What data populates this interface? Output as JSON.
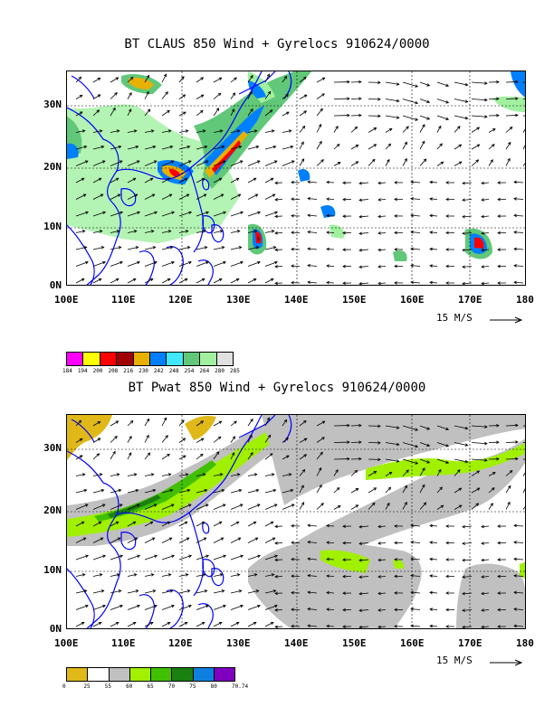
{
  "top": {
    "title": "BT CLAUS 850 Wind + Gyrelocs 910624/0000",
    "y_labels": [
      "30N",
      "20N",
      "10N",
      "0N"
    ],
    "x_labels": [
      "100E",
      "110E",
      "120E",
      "130E",
      "140E",
      "150E",
      "160E",
      "170E",
      "180"
    ],
    "scale_label": "15 M/S",
    "colorbar": {
      "colors": [
        "#ff00ff",
        "#ffff00",
        "#ff0000",
        "#a00000",
        "#e8b000",
        "#0080ff",
        "#40e8ff",
        "#60c878",
        "#a0f0a0",
        "#e0e0e0"
      ],
      "ticks": [
        "184",
        "194",
        "200",
        "208",
        "216",
        "230",
        "242",
        "248",
        "254",
        "264",
        "280",
        "285"
      ]
    }
  },
  "bottom": {
    "title": "BT Pwat 850 Wind + Gyrelocs 910624/0000",
    "y_labels": [
      "30N",
      "20N",
      "10N",
      "0N"
    ],
    "x_labels": [
      "100E",
      "110E",
      "120E",
      "130E",
      "140E",
      "150E",
      "160E",
      "170E",
      "180"
    ],
    "scale_label": "15 M/S",
    "colorbar": {
      "colors": [
        "#e0b818",
        "#ffffff",
        "#c0c0c0",
        "#a0f000",
        "#40c000",
        "#1a8010",
        "#1080e0",
        "#8000c0"
      ],
      "ticks": [
        "0",
        "25",
        "55",
        "60",
        "65",
        "70",
        "75",
        "80",
        "70.74"
      ]
    }
  },
  "colors": {
    "coast": "#0000ff",
    "grid": "#000000"
  }
}
